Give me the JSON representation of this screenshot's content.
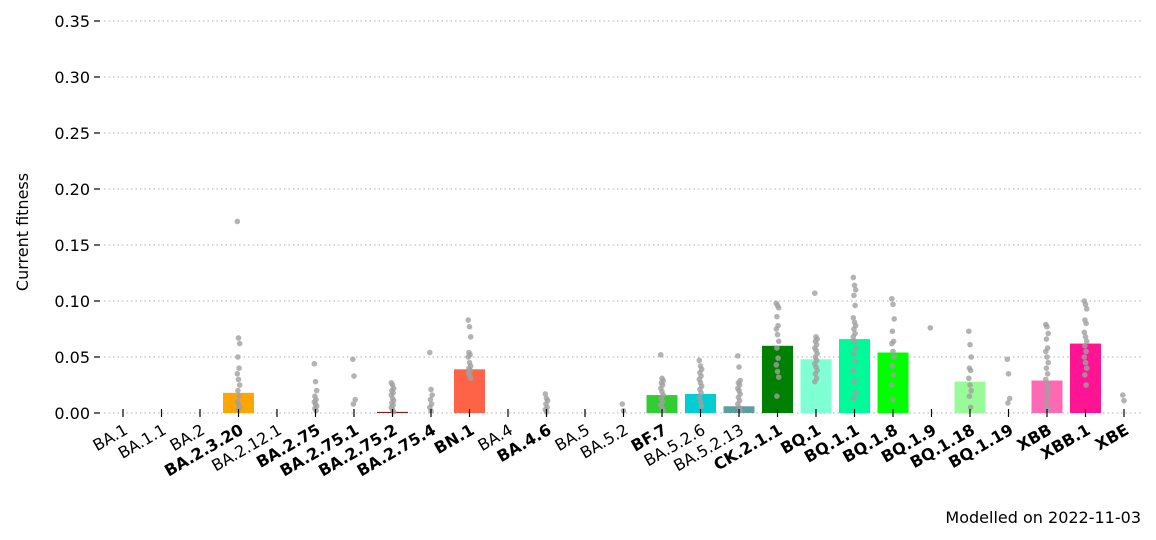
{
  "chart_data": {
    "type": "bar",
    "ylabel": "Current fitness",
    "ylim": [
      0,
      0.35
    ],
    "yticks": [
      "0.00",
      "0.05",
      "0.10",
      "0.15",
      "0.20",
      "0.25",
      "0.30",
      "0.35"
    ],
    "ytick_values": [
      0,
      0.05,
      0.1,
      0.15,
      0.2,
      0.25,
      0.3,
      0.35
    ],
    "grid": true,
    "note": "Modelled on 2022-11-03",
    "categories": [
      {
        "label": "BA.1",
        "bold": false,
        "value": 0,
        "color": "#ffffff",
        "points": []
      },
      {
        "label": "BA.1.1",
        "bold": false,
        "value": 0,
        "color": "#ffffff",
        "points": []
      },
      {
        "label": "BA.2",
        "bold": false,
        "value": 0,
        "color": "#ffffff",
        "points": []
      },
      {
        "label": "BA.2.3.20",
        "bold": true,
        "value": 0.018,
        "color": "#ffa500",
        "points": [
          0.171,
          0.067,
          0.062,
          0.05,
          0.04,
          0.035,
          0.03,
          0.025,
          0.02,
          0.015,
          0.01,
          0.008,
          0.005,
          0.003
        ]
      },
      {
        "label": "BA.2.12.1",
        "bold": false,
        "value": 0,
        "color": "#ffffff",
        "points": []
      },
      {
        "label": "BA.2.75",
        "bold": true,
        "value": 0,
        "color": "#ffffff",
        "points": [
          0.044,
          0.028,
          0.02,
          0.015,
          0.012,
          0.01,
          0.008,
          0.006,
          0.004,
          0.002
        ]
      },
      {
        "label": "BA.2.75.1",
        "bold": true,
        "value": 0,
        "color": "#ffffff",
        "points": [
          0.048,
          0.033,
          0.012,
          0.008
        ]
      },
      {
        "label": "BA.2.75.2",
        "bold": true,
        "value": 0.001,
        "color": "#8b1a1a",
        "points": [
          0.027,
          0.025,
          0.022,
          0.02,
          0.018,
          0.016,
          0.013,
          0.011,
          0.009,
          0.007,
          0.005,
          0.003,
          0.001
        ]
      },
      {
        "label": "BA.2.75.4",
        "bold": true,
        "value": 0,
        "color": "#ffffff",
        "points": [
          0.054,
          0.021,
          0.016,
          0.012,
          0.008,
          0.005,
          0.002
        ]
      },
      {
        "label": "BN.1",
        "bold": true,
        "value": 0.039,
        "color": "#ff6347",
        "points": [
          0.083,
          0.077,
          0.068,
          0.054,
          0.052,
          0.05,
          0.045,
          0.042,
          0.04,
          0.038,
          0.036,
          0.034,
          0.031
        ]
      },
      {
        "label": "BA.4",
        "bold": false,
        "value": 0,
        "color": "#ffffff",
        "points": []
      },
      {
        "label": "BA.4.6",
        "bold": true,
        "value": 0,
        "color": "#ffffff",
        "points": [
          0.017,
          0.013,
          0.011,
          0.008,
          0.005,
          0.003,
          0.001
        ]
      },
      {
        "label": "BA.5",
        "bold": false,
        "value": 0,
        "color": "#ffffff",
        "points": []
      },
      {
        "label": "BA.5.2",
        "bold": false,
        "value": 0,
        "color": "#ffffff",
        "points": [
          0.008,
          0.002
        ]
      },
      {
        "label": "BF.7",
        "bold": true,
        "value": 0.016,
        "color": "#32cd32",
        "points": [
          0.052,
          0.031,
          0.029,
          0.027,
          0.025,
          0.022,
          0.019,
          0.016,
          0.013,
          0.01,
          0.007,
          0.004,
          0.002
        ]
      },
      {
        "label": "BA.5.2.6",
        "bold": false,
        "value": 0.017,
        "color": "#00ced1",
        "points": [
          0.047,
          0.042,
          0.039,
          0.036,
          0.033,
          0.03,
          0.027,
          0.024,
          0.021,
          0.018,
          0.014,
          0.01,
          0.006
        ]
      },
      {
        "label": "BA.5.2.13",
        "bold": false,
        "value": 0.006,
        "color": "#5f9ea0",
        "points": [
          0.051,
          0.041,
          0.029,
          0.027,
          0.025,
          0.022,
          0.02,
          0.017,
          0.014,
          0.011,
          0.008,
          0.005,
          0.002
        ]
      },
      {
        "label": "CK.2.1.1",
        "bold": true,
        "value": 0.06,
        "color": "#008000",
        "points": [
          0.098,
          0.096,
          0.094,
          0.086,
          0.078,
          0.075,
          0.07,
          0.064,
          0.058,
          0.049,
          0.043,
          0.037,
          0.032,
          0.015
        ]
      },
      {
        "label": "BQ.1",
        "bold": true,
        "value": 0.048,
        "color": "#7fffd4",
        "points": [
          0.107,
          0.068,
          0.066,
          0.064,
          0.061,
          0.058,
          0.056,
          0.053,
          0.05,
          0.047,
          0.044,
          0.041,
          0.038,
          0.035,
          0.031,
          0.028
        ]
      },
      {
        "label": "BQ.1.1",
        "bold": true,
        "value": 0.066,
        "color": "#00fa9a",
        "points": [
          0.121,
          0.114,
          0.11,
          0.105,
          0.096,
          0.085,
          0.081,
          0.078,
          0.075,
          0.071,
          0.068,
          0.064,
          0.058,
          0.053,
          0.046,
          0.038,
          0.028,
          0.018,
          0.013
        ]
      },
      {
        "label": "BQ.1.8",
        "bold": true,
        "value": 0.054,
        "color": "#00ff00",
        "points": [
          0.102,
          0.097,
          0.084,
          0.073,
          0.064,
          0.062,
          0.055,
          0.05,
          0.042,
          0.034,
          0.025,
          0.012
        ]
      },
      {
        "label": "BQ.1.9",
        "bold": true,
        "value": 0,
        "color": "#ffffff",
        "points": [
          0.076
        ]
      },
      {
        "label": "BQ.1.18",
        "bold": true,
        "value": 0.028,
        "color": "#98fb98",
        "points": [
          0.073,
          0.061,
          0.05,
          0.04,
          0.038,
          0.031,
          0.025,
          0.02,
          0.015,
          0.005
        ]
      },
      {
        "label": "BQ.1.19",
        "bold": true,
        "value": 0,
        "color": "#ffffff",
        "points": [
          0.048,
          0.035,
          0.013,
          0.009
        ]
      },
      {
        "label": "XBB",
        "bold": true,
        "value": 0.029,
        "color": "#ff69b4",
        "points": [
          0.079,
          0.077,
          0.071,
          0.066,
          0.058,
          0.055,
          0.05,
          0.045,
          0.04,
          0.035,
          0.03,
          0.026,
          0.022,
          0.018,
          0.014,
          0.01,
          0.006,
          0.003
        ]
      },
      {
        "label": "XBB.1",
        "bold": true,
        "value": 0.062,
        "color": "#ff1493",
        "points": [
          0.1,
          0.097,
          0.093,
          0.083,
          0.08,
          0.072,
          0.068,
          0.064,
          0.06,
          0.055,
          0.05,
          0.045,
          0.04,
          0.034,
          0.025
        ]
      },
      {
        "label": "XBE",
        "bold": true,
        "value": 0,
        "color": "#ffffff",
        "points": [
          0.016,
          0.011
        ]
      }
    ]
  }
}
